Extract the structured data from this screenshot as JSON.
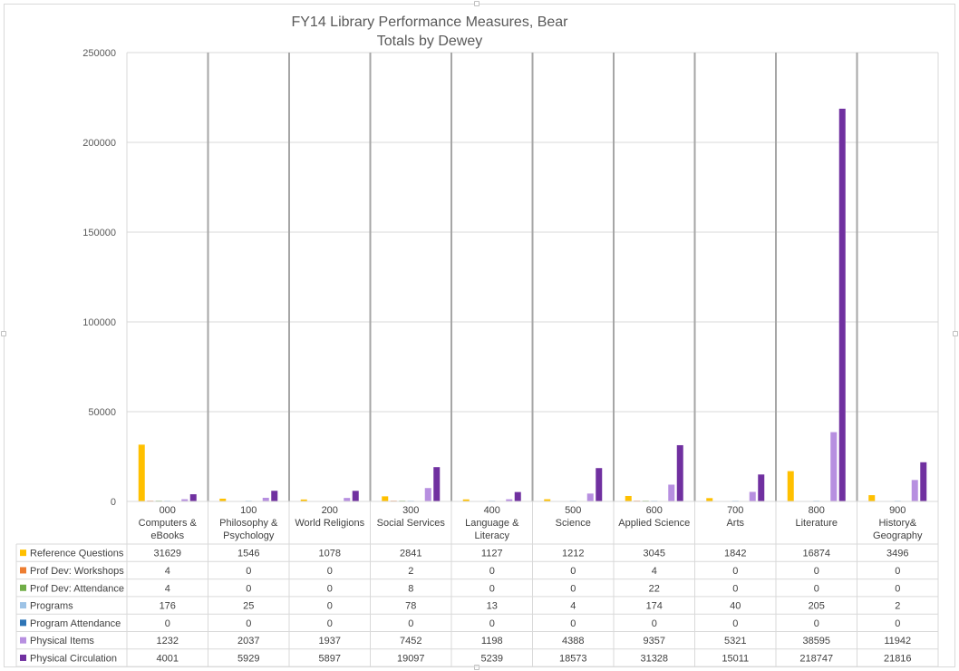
{
  "chart_data": {
    "type": "bar",
    "title_line1": "FY14 Library Performance Measures, Bear",
    "title_line2": "Totals by Dewey",
    "ylim": [
      0,
      250000
    ],
    "yticks": [
      "250000",
      "200000",
      "150000",
      "100000",
      "50000",
      "0"
    ],
    "grid": true,
    "legend": "data-table",
    "categories": [
      [
        "000",
        "Computers &",
        "eBooks"
      ],
      [
        "100",
        "Philosophy &",
        "Psychology"
      ],
      [
        "200",
        "World Religions"
      ],
      [
        "300",
        "Social Services"
      ],
      [
        "400",
        "Language &",
        "Literacy"
      ],
      [
        "500",
        "Science"
      ],
      [
        "600",
        "Applied Science"
      ],
      [
        "700",
        "Arts"
      ],
      [
        "800",
        "Literature"
      ],
      [
        "900",
        "History&",
        "Geography"
      ]
    ],
    "series": [
      {
        "name": "Reference Questions",
        "color": "#ffc000",
        "values": [
          31629,
          1546,
          1078,
          2841,
          1127,
          1212,
          3045,
          1842,
          16874,
          3496
        ]
      },
      {
        "name": "Prof Dev: Workshops",
        "color": "#ed7d31",
        "values": [
          4,
          0,
          0,
          2,
          0,
          0,
          4,
          0,
          0,
          0
        ]
      },
      {
        "name": "Prof Dev: Attendance",
        "color": "#70ad47",
        "values": [
          4,
          0,
          0,
          8,
          0,
          0,
          22,
          0,
          0,
          0
        ]
      },
      {
        "name": "Programs",
        "color": "#9dc3e6",
        "values": [
          176,
          25,
          0,
          78,
          13,
          4,
          174,
          40,
          205,
          2
        ]
      },
      {
        "name": "Program Attendance",
        "color": "#2e75b6",
        "values": [
          0,
          0,
          0,
          0,
          0,
          0,
          0,
          0,
          0,
          0
        ]
      },
      {
        "name": "Physical Items",
        "color": "#b78fe0",
        "values": [
          1232,
          2037,
          1937,
          7452,
          1198,
          4388,
          9357,
          5321,
          38595,
          11942
        ]
      },
      {
        "name": "Physical Circulation",
        "color": "#7030a0",
        "values": [
          4001,
          5929,
          5897,
          19097,
          5239,
          18573,
          31328,
          15011,
          218747,
          21816
        ]
      }
    ]
  }
}
